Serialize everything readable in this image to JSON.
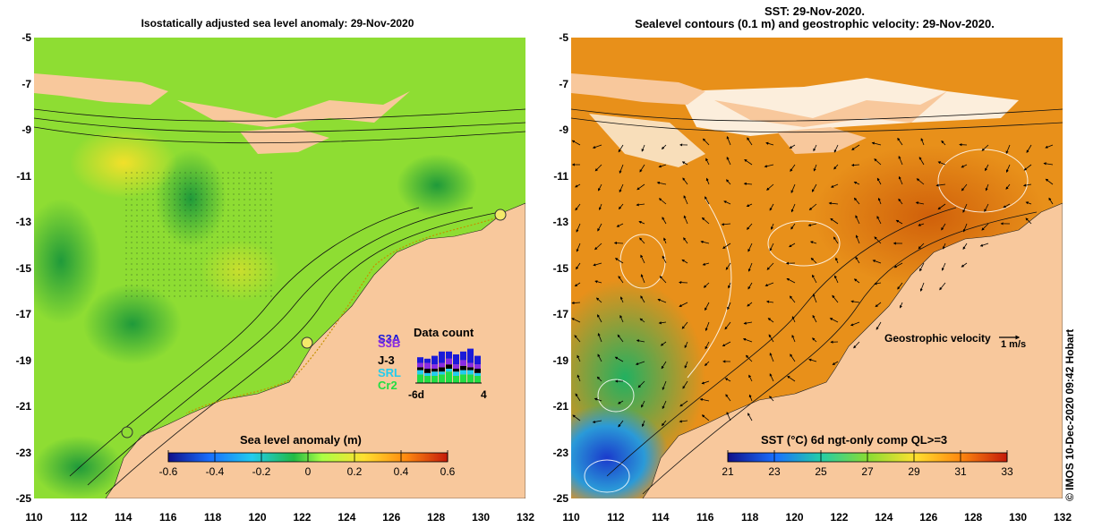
{
  "left_panel": {
    "title": "Isostatically adjusted sea level anomaly: 29-Nov-2020",
    "colorbar": {
      "label": "Sea level anomaly (m)",
      "ticks": [
        "-0.6",
        "-0.4",
        "-0.2",
        "0",
        "0.2",
        "0.4",
        "0.6"
      ]
    },
    "data_count": {
      "title": "Data count",
      "satellites": [
        "S3A",
        "S3B",
        "J-3",
        "SRL",
        "Cr2"
      ],
      "satellite_colors": [
        "#1a1ad8",
        "#8a2be2",
        "#000000",
        "#22ccee",
        "#22dd44"
      ],
      "x_ticks": [
        "-6d",
        "4"
      ]
    }
  },
  "right_panel": {
    "title_line1": "SST: 29-Nov-2020.",
    "title_line2": "Sealevel contours (0.1 m) and geostrophic velocity: 29-Nov-2020.",
    "velocity_legend": {
      "label": "Geostrophic velocity",
      "scale": "1 m/s"
    },
    "colorbar": {
      "label": "SST (°C) 6d ngt-only comp QL>=3",
      "ticks": [
        "21",
        "23",
        "25",
        "27",
        "29",
        "31",
        "33"
      ]
    }
  },
  "axes": {
    "y_ticks": [
      "-5",
      "-7",
      "-9",
      "-11",
      "-13",
      "-15",
      "-17",
      "-19",
      "-21",
      "-23",
      "-25"
    ],
    "x_ticks": [
      "110",
      "112",
      "114",
      "116",
      "118",
      "120",
      "122",
      "124",
      "126",
      "128",
      "130",
      "132"
    ]
  },
  "credit": "© IMOS 10-Dec-2020 09:42 Hobart",
  "colors": {
    "land": "#f8c89c",
    "sea_left": "#8edd33",
    "sea_right": "#e8901a"
  }
}
